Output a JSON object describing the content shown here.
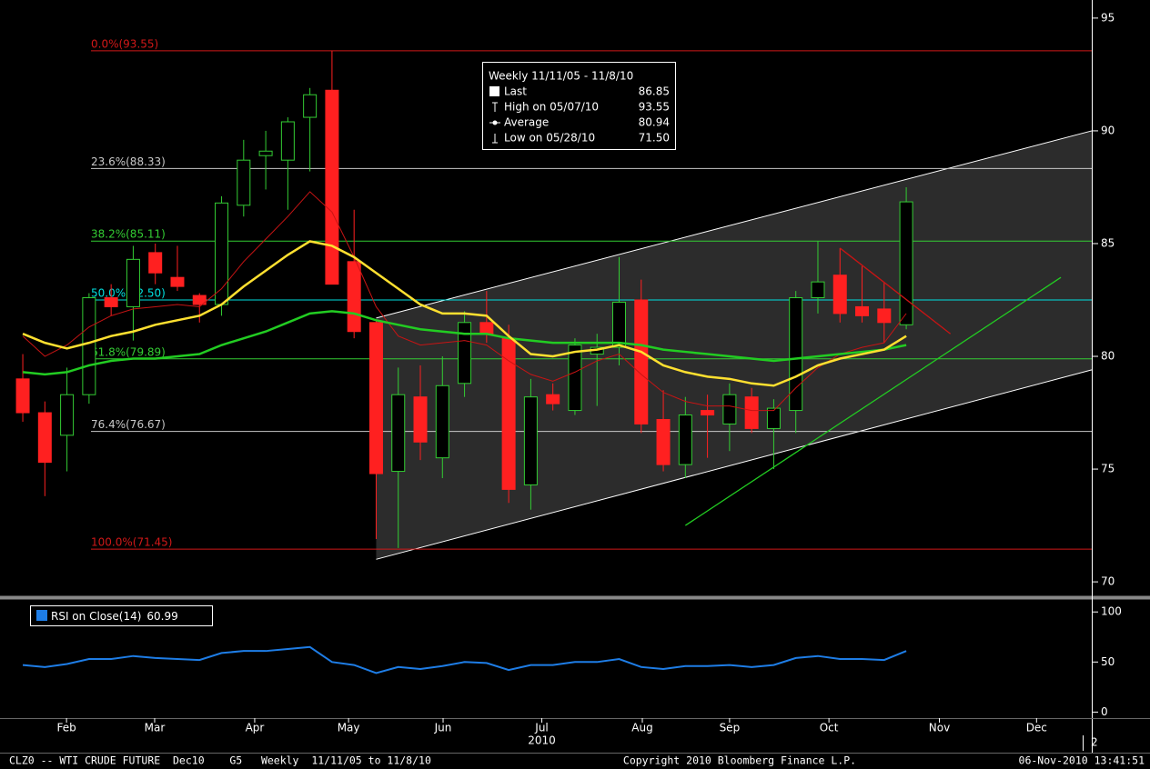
{
  "chart_data": [
    {
      "type": "candlestick",
      "xlim": [
        -0.62,
        48.4
      ],
      "ylim": [
        69.4,
        95.6
      ],
      "yticks": [
        70,
        75,
        80,
        85,
        90,
        95
      ],
      "xticks": [
        {
          "value": 1.98,
          "label": "Feb"
        },
        {
          "value": 5.97,
          "label": "Mar"
        },
        {
          "value": 10.5,
          "label": "Apr"
        },
        {
          "value": 14.75,
          "label": "May"
        },
        {
          "value": 19.03,
          "label": "Jun"
        },
        {
          "value": 23.5,
          "label": "Jul"
        },
        {
          "value": 28.05,
          "label": "Aug"
        },
        {
          "value": 32.0,
          "label": "Sep"
        },
        {
          "value": 36.5,
          "label": "Oct"
        },
        {
          "value": 41.5,
          "label": "Nov"
        },
        {
          "value": 45.9,
          "label": "Dec"
        }
      ],
      "year_label": "2010",
      "edge_label": "2",
      "ohlc": {
        "up_color": "#33cc33",
        "down_color": "#ff2020",
        "open": [
          79.0,
          77.5,
          76.5,
          78.3,
          82.6,
          82.2,
          84.6,
          83.5,
          82.7,
          82.3,
          86.7,
          88.9,
          88.7,
          90.6,
          91.8,
          84.2,
          81.5,
          74.9,
          78.2,
          75.5,
          78.8,
          81.5,
          80.8,
          74.3,
          78.3,
          77.6,
          80.1,
          80.4,
          82.5,
          77.2,
          75.2,
          77.6,
          77.0,
          78.2,
          76.8,
          77.6,
          82.6,
          83.6,
          82.2,
          82.1,
          81.4
        ],
        "high": [
          80.1,
          78.0,
          79.5,
          82.8,
          83.2,
          84.9,
          85.0,
          84.9,
          82.8,
          87.1,
          89.6,
          90.0,
          90.6,
          91.9,
          93.55,
          86.5,
          81.6,
          79.5,
          79.6,
          80.0,
          82.0,
          82.9,
          81.4,
          79.0,
          78.8,
          80.8,
          81.0,
          84.4,
          83.4,
          78.5,
          78.2,
          78.3,
          78.8,
          78.6,
          78.1,
          82.9,
          85.1,
          84.8,
          84.0,
          83.3,
          87.5
        ],
        "low": [
          77.1,
          73.8,
          74.9,
          77.9,
          81.8,
          80.7,
          83.2,
          82.9,
          81.5,
          81.8,
          86.2,
          87.4,
          86.5,
          88.2,
          88.0,
          80.8,
          71.9,
          71.5,
          75.4,
          74.6,
          78.2,
          80.6,
          73.5,
          73.2,
          77.6,
          77.4,
          77.8,
          79.6,
          76.6,
          74.9,
          74.6,
          75.5,
          75.8,
          76.6,
          75.0,
          76.6,
          81.9,
          81.5,
          81.5,
          80.6,
          81.2
        ],
        "close": [
          77.5,
          75.3,
          78.3,
          82.6,
          82.2,
          84.3,
          83.7,
          83.1,
          82.3,
          86.8,
          88.7,
          89.1,
          90.4,
          91.6,
          83.2,
          81.1,
          74.8,
          78.3,
          76.2,
          78.7,
          81.5,
          81.0,
          74.1,
          78.2,
          77.9,
          80.5,
          80.4,
          82.4,
          77.0,
          75.2,
          77.4,
          77.4,
          78.3,
          76.8,
          77.7,
          82.6,
          83.3,
          81.9,
          81.8,
          81.5,
          86.85
        ]
      },
      "moving_averages": [
        {
          "color": "#c81414",
          "values": [
            80.9,
            80.0,
            80.5,
            81.3,
            81.8,
            82.1,
            82.2,
            82.3,
            82.2,
            83.0,
            84.2,
            85.2,
            86.2,
            87.3,
            86.4,
            84.4,
            82.2,
            80.9,
            80.5,
            80.6,
            80.7,
            80.5,
            79.8,
            79.2,
            78.9,
            79.3,
            79.8,
            80.1,
            79.2,
            78.4,
            78.0,
            77.8,
            77.8,
            77.6,
            77.6,
            78.6,
            79.5,
            80.1,
            80.4,
            80.6,
            81.9
          ]
        },
        {
          "color": "#22cc22",
          "values": [
            79.3,
            79.2,
            79.3,
            79.6,
            79.8,
            79.9,
            79.9,
            80.0,
            80.1,
            80.5,
            80.8,
            81.1,
            81.5,
            81.9,
            82.0,
            81.9,
            81.6,
            81.4,
            81.2,
            81.1,
            81.0,
            81.0,
            80.8,
            80.7,
            80.6,
            80.6,
            80.6,
            80.6,
            80.5,
            80.3,
            80.2,
            80.1,
            80.0,
            79.9,
            79.8,
            79.9,
            80.0,
            80.1,
            80.2,
            80.3,
            80.5
          ]
        },
        {
          "color": "#ffe030",
          "values": [
            81.0,
            80.6,
            80.35,
            80.6,
            80.9,
            81.1,
            81.4,
            81.6,
            81.8,
            82.3,
            83.1,
            83.8,
            84.5,
            85.1,
            84.9,
            84.4,
            83.7,
            83.0,
            82.3,
            81.9,
            81.9,
            81.8,
            80.9,
            80.1,
            80.0,
            80.2,
            80.3,
            80.5,
            80.2,
            79.6,
            79.3,
            79.1,
            79.0,
            78.8,
            78.7,
            79.1,
            79.6,
            79.9,
            80.1,
            80.3,
            80.9
          ]
        }
      ],
      "fib_levels": [
        {
          "label": "0.0%(93.55)",
          "value": 93.55,
          "color": "#d01818"
        },
        {
          "label": "23.6%(88.33)",
          "value": 88.33,
          "color": "#c8c8c8"
        },
        {
          "label": "38.2%(85.11)",
          "value": 85.11,
          "color": "#33cc33"
        },
        {
          "label": "50.0%(82.50)",
          "value": 82.5,
          "color": "#00e0e0"
        },
        {
          "label": "61.8%(79.89)",
          "value": 79.89,
          "color": "#33cc33"
        },
        {
          "label": "76.4%(76.67)",
          "value": 76.67,
          "color": "#c8c8c8"
        },
        {
          "label": "100.0%(71.45)",
          "value": 71.45,
          "color": "#d01818"
        }
      ],
      "channel": {
        "x": [
          16,
          48.4
        ],
        "upper": [
          81.7,
          90.0
        ],
        "lower": [
          71.0,
          79.4
        ],
        "color": "#ffffff",
        "fill": "#2c2c2c"
      },
      "trend_lines": [
        {
          "x": [
            30,
            47
          ],
          "y": [
            72.5,
            83.5
          ],
          "color": "#22cc22"
        },
        {
          "x": [
            37,
            42
          ],
          "y": [
            84.8,
            81.0
          ],
          "color": "#c81414"
        }
      ],
      "legend": {
        "title": "Weekly 11/11/05 - 11/8/10",
        "labels": [
          "Last",
          "High on 05/07/10",
          "Average",
          "Low on 05/28/10"
        ],
        "values": [
          86.85,
          93.55,
          80.94,
          71.5
        ],
        "value_labels": [
          "86.85",
          "93.55",
          "80.94",
          "71.50"
        ]
      }
    },
    {
      "type": "line",
      "label": "RSI on Close(14)",
      "color": "#1e7de6",
      "ylim": [
        -6,
        112
      ],
      "yticks": [
        0,
        50,
        100
      ],
      "values": [
        47,
        45,
        48,
        53,
        53,
        56,
        54,
        53,
        52,
        59,
        61,
        61,
        63,
        65,
        50,
        47,
        39,
        45,
        43,
        46,
        50,
        49,
        42,
        47,
        47,
        50,
        50,
        53,
        45,
        43,
        46,
        46,
        47,
        45,
        47,
        54,
        56,
        53,
        53,
        52,
        60.99
      ]
    }
  ],
  "footer": {
    "left": "CLZ0 -- WTI CRUDE FUTURE  Dec10    G5   Weekly  11/11/05 to 11/8/10",
    "center": "Copyright 2010 Bloomberg Finance L.P.",
    "right": "06-Nov-2010 13:41:51"
  }
}
